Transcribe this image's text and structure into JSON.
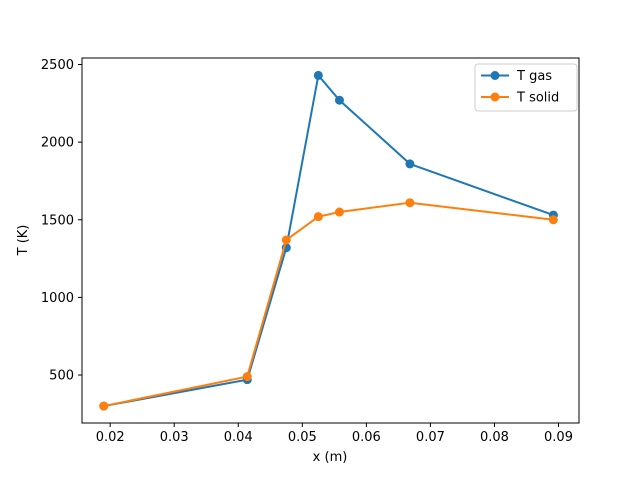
{
  "figure": {
    "background": "#ffffff"
  },
  "chart_data": {
    "type": "line",
    "title": "",
    "xlabel": "x (m)",
    "ylabel": "T (K)",
    "x": [
      0.019,
      0.0414,
      0.0475,
      0.0525,
      0.0558,
      0.0668,
      0.0892
    ],
    "series": [
      {
        "name": "T gas",
        "color": "#1f77b4",
        "values": [
          300,
          470,
          1320,
          2430,
          2270,
          1860,
          1530
        ]
      },
      {
        "name": "T solid",
        "color": "#ff7f0e",
        "values": [
          300,
          490,
          1370,
          1520,
          1550,
          1610,
          1500
        ]
      }
    ],
    "xticks": [
      0.02,
      0.03,
      0.04,
      0.05,
      0.06,
      0.07,
      0.08,
      0.09
    ],
    "xtick_labels": [
      "0.02",
      "0.03",
      "0.04",
      "0.05",
      "0.06",
      "0.07",
      "0.08",
      "0.09"
    ],
    "yticks": [
      500,
      1000,
      1500,
      2000,
      2500
    ],
    "ytick_labels": [
      "500",
      "1000",
      "1500",
      "2000",
      "2500"
    ],
    "xlim": [
      0.0156,
      0.0932
    ],
    "ylim": [
      191,
      2542
    ],
    "grid": false,
    "marker": "o",
    "line_style": "solid",
    "axis_color": "#000000",
    "legend": {
      "position": "upper right",
      "entries": [
        "T gas",
        "T solid"
      ],
      "border_color": "#cccccc",
      "background": "#ffffff"
    }
  }
}
